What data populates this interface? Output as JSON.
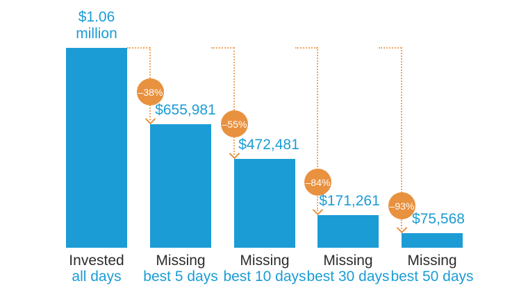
{
  "chart_data": {
    "type": "bar",
    "title": "",
    "xlabel": "",
    "ylabel": "",
    "ylim": [
      0,
      1060000
    ],
    "grid": false,
    "legend": false,
    "categories": [
      "Invested all days",
      "Missing best 5 days",
      "Missing best 10 days",
      "Missing best 30 days",
      "Missing best 50 days"
    ],
    "values": [
      1060000,
      655981,
      472481,
      171261,
      75568
    ],
    "value_labels": [
      "$1.06 million",
      "$655,981",
      "$472,481",
      "$171,261",
      "$75,568"
    ],
    "drop_badges": [
      null,
      "–38%",
      "–55%",
      "–84%",
      "–93%"
    ],
    "bars": [
      {
        "label_top": "Invested",
        "label_bottom": "all days",
        "value": 1060000,
        "value_line1": "$1.06",
        "value_line2": "million",
        "badge": null
      },
      {
        "label_top": "Missing",
        "label_bottom": "best 5 days",
        "value": 655981,
        "value_line1": "$655,981",
        "value_line2": null,
        "badge": "–38%"
      },
      {
        "label_top": "Missing",
        "label_bottom": "best 10 days",
        "value": 472481,
        "value_line1": "$472,481",
        "value_line2": null,
        "badge": "–55%"
      },
      {
        "label_top": "Missing",
        "label_bottom": "best 30 days",
        "value": 171261,
        "value_line1": "$171,261",
        "value_line2": null,
        "badge": "–84%"
      },
      {
        "label_top": "Missing",
        "label_bottom": "best 50 days",
        "value": 75568,
        "value_line1": "$75,568",
        "value_line2": null,
        "badge": "–93%"
      }
    ],
    "colors": {
      "bar": "#1B9CD5",
      "value_text": "#1B9CD5",
      "category_text_dark": "#2D2B2A",
      "category_text_blue": "#1B9CD5",
      "badge": "#E8913F",
      "badge_text": "#FFFFFF",
      "dotted_line": "#F0A45E"
    }
  }
}
